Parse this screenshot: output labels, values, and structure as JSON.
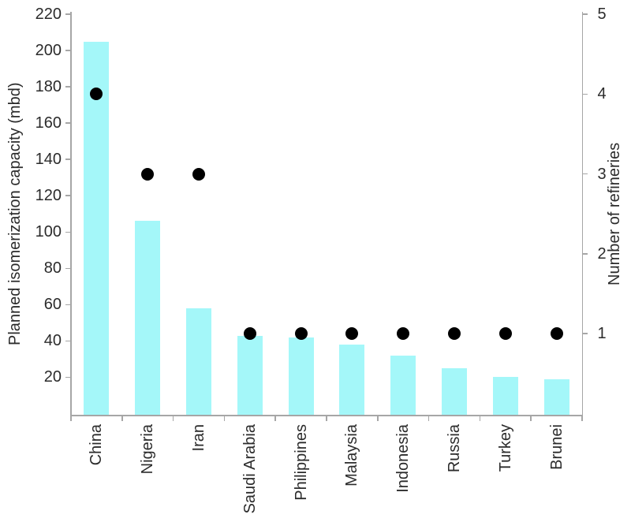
{
  "chart_data": {
    "type": "combo",
    "title": "",
    "categories": [
      "China",
      "Nigeria",
      "Iran",
      "Saudi Arabia",
      "Philippines",
      "Malaysia",
      "Indonesia",
      "Russia",
      "Turkey",
      "Brunei"
    ],
    "series": [
      {
        "name": "Planned isomerization capacity (mbd)",
        "type": "bar",
        "axis": "left",
        "values": [
          205,
          106,
          58,
          43,
          42,
          38,
          32,
          25,
          20,
          19
        ]
      },
      {
        "name": "Number of refineries",
        "type": "scatter",
        "axis": "right",
        "values": [
          4,
          3,
          3,
          1,
          1,
          1,
          1,
          1,
          1,
          1
        ]
      }
    ],
    "left_axis": {
      "label": "Planned isomerization capacity (mbd)",
      "min": 0,
      "max": 220,
      "ticks": [
        20,
        40,
        60,
        80,
        100,
        120,
        140,
        160,
        180,
        200,
        220
      ]
    },
    "right_axis": {
      "label": "Number of refineries",
      "min": 0,
      "max": 5,
      "ticks": [
        1,
        2,
        3,
        4,
        5
      ]
    },
    "grid": false,
    "legend": "none",
    "colors": {
      "bar": "#A4F7F9",
      "marker": "#000000",
      "axis_line": "#A6A6A6",
      "text": "#2B2B2B"
    }
  }
}
